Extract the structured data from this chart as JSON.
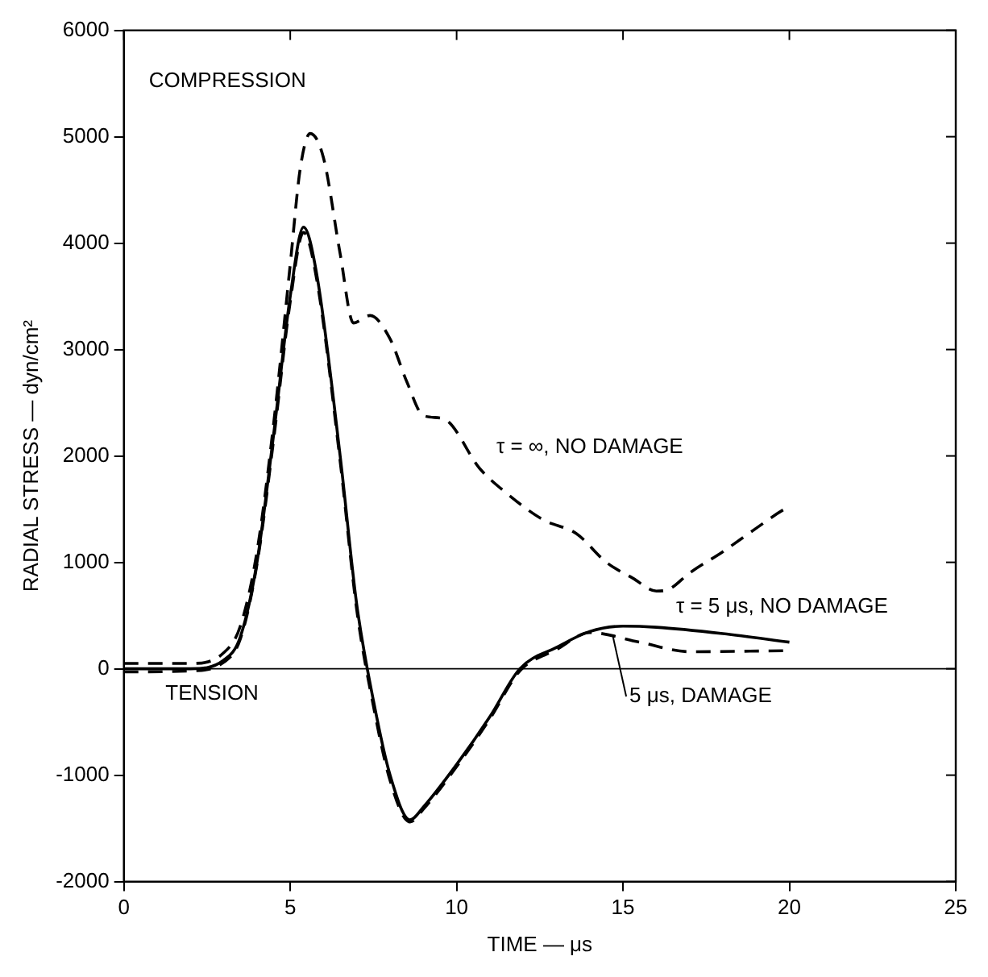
{
  "chart_data": {
    "type": "line",
    "xlabel": "TIME — μs",
    "ylabel": "RADIAL STRESS — dyn/cm²",
    "xlim": [
      0,
      25
    ],
    "xticks": [
      0,
      5,
      10,
      15,
      20,
      25
    ],
    "ylim": [
      -2000,
      6000
    ],
    "yticks": [
      -2000,
      -1000,
      0,
      1000,
      2000,
      3000,
      4000,
      5000,
      6000
    ],
    "grid": false,
    "legend": false,
    "marker": "none",
    "annotations": [
      "COMPRESSION",
      "TENSION"
    ],
    "ref_lines": [
      {
        "axis": "y",
        "value": 0,
        "color": "#000000",
        "line_style": "solid"
      }
    ],
    "series": [
      {
        "name": "τ = ∞, NO DAMAGE",
        "color": "#000000",
        "line_style": "dashed",
        "x": [
          0,
          2,
          3,
          3.5,
          4,
          4.5,
          5,
          5.3,
          5.6,
          6,
          6.5,
          6.9,
          7.4,
          8,
          8.5,
          9,
          9.6,
          10.7,
          11.5,
          12.6,
          13.6,
          14.5,
          15.3,
          16,
          16.4,
          17,
          18,
          19,
          19.8,
          20
        ],
        "values": [
          50,
          50,
          150,
          400,
          1100,
          2300,
          3800,
          4700,
          5030,
          4800,
          3900,
          3250,
          3320,
          3100,
          2700,
          2380,
          2350,
          1880,
          1650,
          1400,
          1270,
          1000,
          850,
          730,
          750,
          900,
          1100,
          1320,
          1490,
          1520
        ]
      },
      {
        "name": "τ = 5 μs, NO DAMAGE",
        "color": "#000000",
        "line_style": "solid",
        "x": [
          0,
          2,
          3,
          3.5,
          4,
          4.5,
          5,
          5.4,
          5.8,
          6.5,
          7,
          7.5,
          8,
          8.6,
          9,
          10,
          11,
          11.9,
          13,
          14,
          15,
          16,
          18,
          20
        ],
        "values": [
          0,
          0,
          80,
          300,
          1000,
          2200,
          3500,
          4150,
          3700,
          2000,
          600,
          -300,
          -1000,
          -1420,
          -1300,
          -900,
          -450,
          0,
          200,
          350,
          400,
          390,
          330,
          250
        ]
      },
      {
        "name": "5 μs, DAMAGE",
        "color": "#000000",
        "line_style": "dashed",
        "x": [
          0,
          2,
          3,
          3.5,
          4,
          4.5,
          5,
          5.4,
          5.8,
          6.5,
          7,
          7.5,
          8,
          8.6,
          9,
          10,
          11,
          11.9,
          13,
          14,
          15.5,
          17,
          20
        ],
        "values": [
          -30,
          -20,
          60,
          280,
          980,
          2150,
          3450,
          4100,
          3650,
          1950,
          550,
          -350,
          -1050,
          -1440,
          -1320,
          -920,
          -470,
          -20,
          180,
          340,
          250,
          160,
          170
        ]
      }
    ]
  }
}
